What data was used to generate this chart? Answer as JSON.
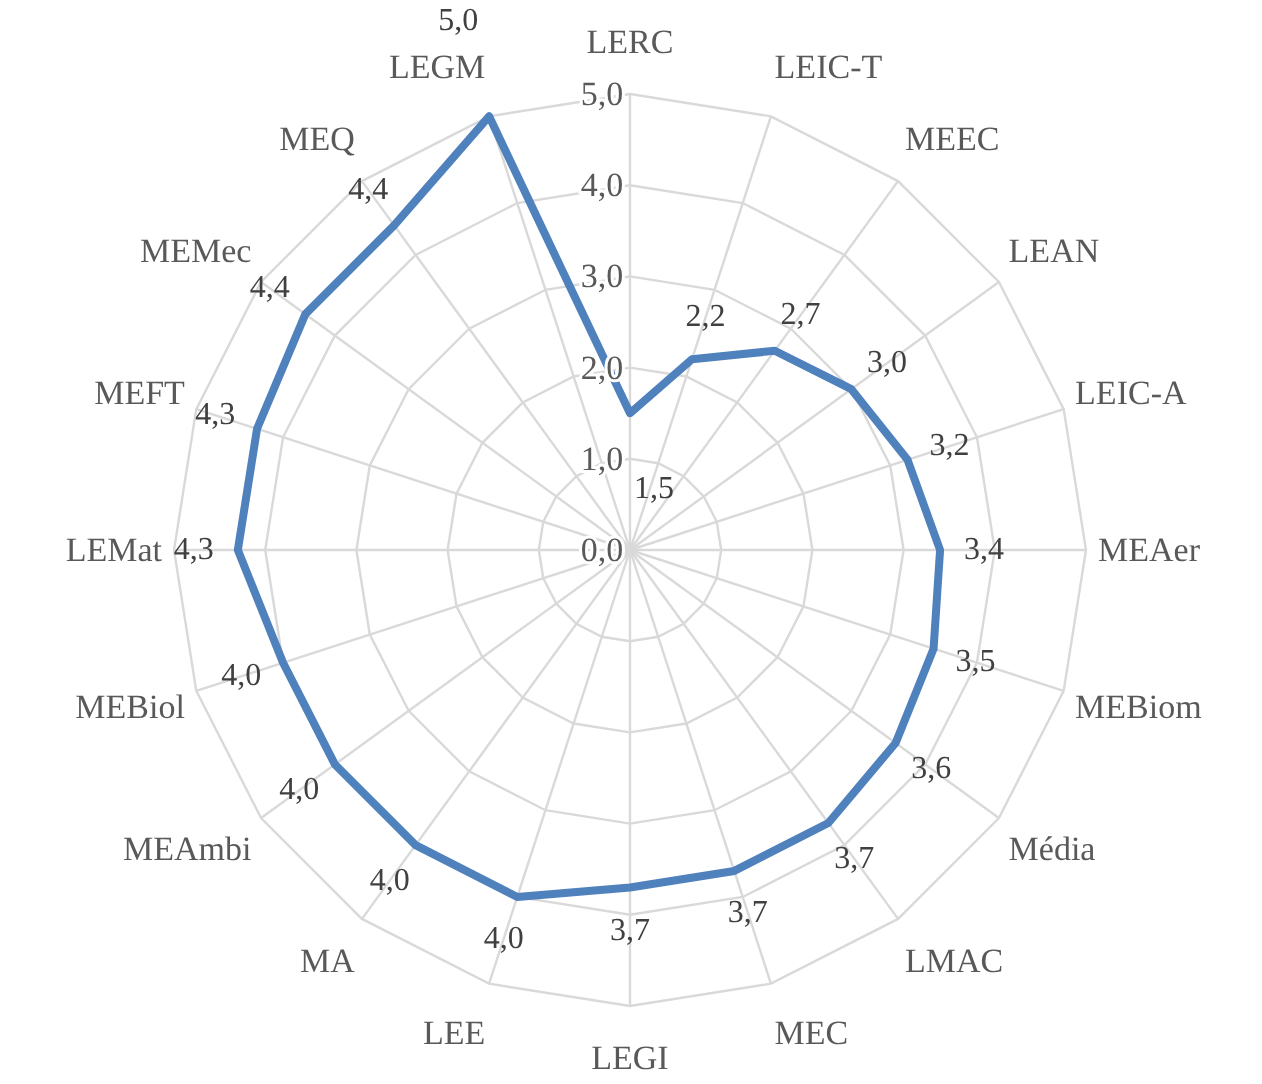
{
  "chart_data": {
    "type": "radar",
    "categories": [
      "LERC",
      "LEIC-T",
      "MEEC",
      "LEAN",
      "LEIC-A",
      "MEAer",
      "MEBiom",
      "Média",
      "LMAC",
      "MEC",
      "LEGI",
      "LEE",
      "MA",
      "MEAmbi",
      "MEBiol",
      "LEMat",
      "MEFT",
      "MEMec",
      "MEQ",
      "LEGM"
    ],
    "series": [
      {
        "color": "#4f81bd",
        "values": [
          1.5,
          2.2,
          2.7,
          3.0,
          3.2,
          3.4,
          3.5,
          3.6,
          3.7,
          3.7,
          3.7,
          4.0,
          4.0,
          4.0,
          4.0,
          4.3,
          4.3,
          4.4,
          4.4,
          5.0
        ],
        "value_labels": [
          "1,5",
          "2,2",
          "2,7",
          "3,0",
          "3,2",
          "3,4",
          "3,5",
          "3,6",
          "3,7",
          "3,7",
          "3,7",
          "4,0",
          "4,0",
          "4,0",
          "4,0",
          "4,3",
          "4,3",
          "4,4",
          "4,4",
          "5,0"
        ]
      }
    ],
    "ylim": [
      0,
      5
    ],
    "yticks": [
      {
        "value": 0,
        "label": "0,0"
      },
      {
        "value": 1,
        "label": "1,0"
      },
      {
        "value": 2,
        "label": "2,0"
      },
      {
        "value": 3,
        "label": "3,0"
      },
      {
        "value": 4,
        "label": "4,0"
      },
      {
        "value": 5,
        "label": "5,0"
      }
    ],
    "grid": true,
    "marker": "none"
  }
}
